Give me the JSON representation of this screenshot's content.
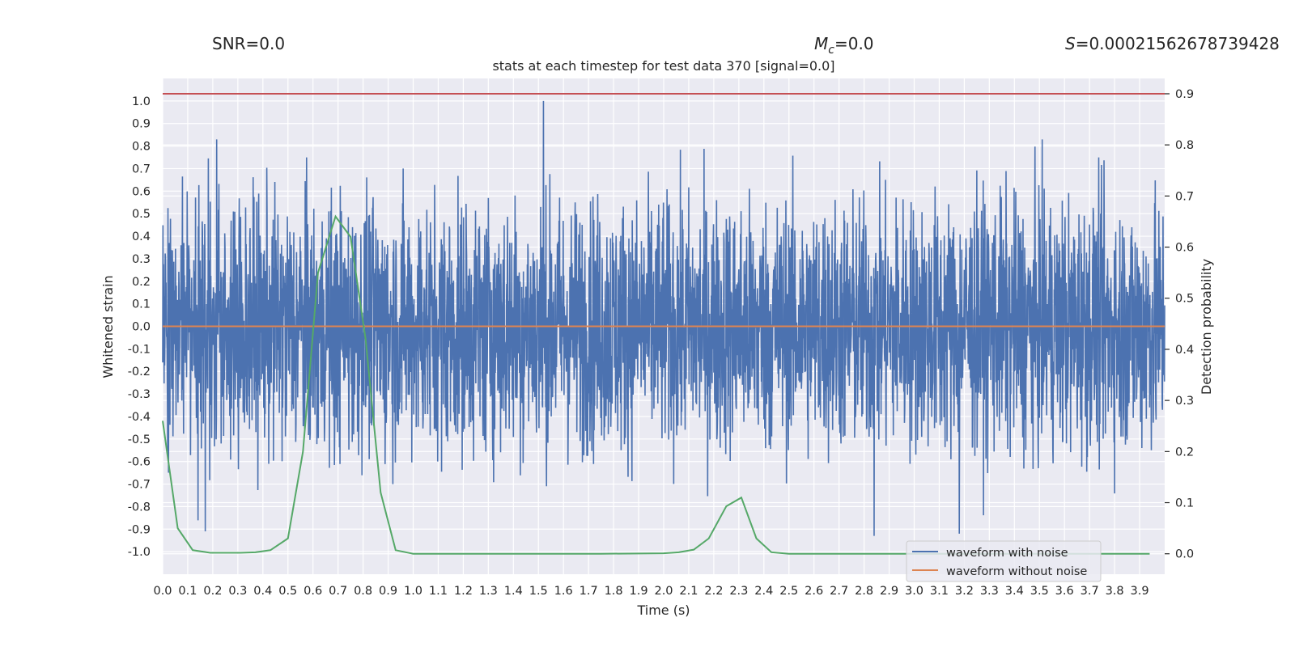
{
  "header": {
    "snr_text": "SNR=0.0",
    "mc_symbol": "M",
    "mc_sub": "c",
    "mc_value": "=0.0",
    "s_symbol": "S",
    "s_value": "=0.00021562678739428"
  },
  "chart_data": {
    "type": "line",
    "title": "stats at each timestep for test data 370 [signal=0.0]",
    "xlabel": "Time (s)",
    "ylabel_left": "Whitened strain",
    "ylabel_right": "Detection probability",
    "xlim": [
      0.0,
      4.0
    ],
    "ylim_left": [
      -1.1,
      1.1
    ],
    "ylim_right": [
      -0.04,
      0.93
    ],
    "x_ticks": [
      "0.0",
      "0.1",
      "0.2",
      "0.3",
      "0.4",
      "0.5",
      "0.6",
      "0.7",
      "0.8",
      "0.9",
      "1.0",
      "1.1",
      "1.2",
      "1.3",
      "1.4",
      "1.5",
      "1.6",
      "1.7",
      "1.8",
      "1.9",
      "2.0",
      "2.1",
      "2.2",
      "2.3",
      "2.4",
      "2.5",
      "2.6",
      "2.7",
      "2.8",
      "2.9",
      "3.0",
      "3.1",
      "3.2",
      "3.3",
      "3.4",
      "3.5",
      "3.6",
      "3.7",
      "3.8",
      "3.9"
    ],
    "y_ticks_left": [
      "1.0",
      "0.9",
      "0.8",
      "0.7",
      "0.6",
      "0.5",
      "0.4",
      "0.3",
      "0.2",
      "0.1",
      "0.0",
      "-0.1",
      "-0.2",
      "-0.3",
      "-0.4",
      "-0.5",
      "-0.6",
      "-0.7",
      "-0.8",
      "-0.9",
      "-1.0"
    ],
    "y_ticks_right": [
      "0.9",
      "0.8",
      "0.7",
      "0.6",
      "0.5",
      "0.4",
      "0.3",
      "0.2",
      "0.1",
      "0.0"
    ],
    "grid": true,
    "legend_placement": "lower-right",
    "series": [
      {
        "name": "waveform with noise",
        "axis": "left",
        "color": "#4c72b0",
        "style": "dense noise, about ±0.3 typical amplitude, peaks to 1.0 and -0.93",
        "amplitude": 0.3,
        "peaks": [
          [
            1.52,
            1.0
          ],
          [
            2.84,
            -0.93
          ],
          [
            3.18,
            -0.92
          ],
          [
            0.17,
            -0.91
          ]
        ]
      },
      {
        "name": "waveform without noise",
        "axis": "left",
        "color": "#dd8452",
        "x": [
          0.0,
          4.0
        ],
        "y": [
          0.0,
          0.0
        ]
      },
      {
        "name": "",
        "axis": "right",
        "color": "#55a868",
        "x": [
          0.0,
          0.06,
          0.12,
          0.19,
          0.25,
          0.31,
          0.37,
          0.43,
          0.5,
          0.56,
          0.62,
          0.69,
          0.75,
          0.81,
          0.87,
          0.93,
          1.0,
          1.25,
          1.5,
          1.75,
          2.0,
          2.06,
          2.12,
          2.18,
          2.25,
          2.31,
          2.37,
          2.43,
          2.5,
          2.75,
          3.0,
          3.25,
          3.5,
          3.75,
          3.94
        ],
        "y": [
          0.26,
          0.05,
          0.007,
          0.002,
          0.002,
          0.002,
          0.003,
          0.007,
          0.03,
          0.2,
          0.55,
          0.66,
          0.62,
          0.42,
          0.12,
          0.007,
          0.0,
          0.0,
          0.0,
          0.0,
          0.001,
          0.003,
          0.008,
          0.03,
          0.093,
          0.11,
          0.03,
          0.003,
          0.0,
          0.0,
          0.0,
          0.0,
          0.0,
          0.0,
          0.0
        ]
      },
      {
        "name": "",
        "axis": "right",
        "color": "#c44e52",
        "x": [
          0.0,
          4.0
        ],
        "y": [
          0.9,
          0.9
        ]
      }
    ]
  }
}
